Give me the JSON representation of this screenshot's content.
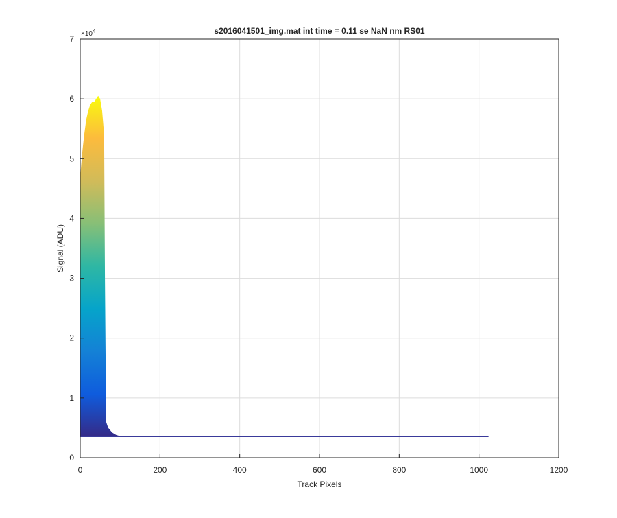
{
  "chart_data": {
    "type": "area",
    "title": "s2016041501_img.mat int time = 0.11 se  NaN nm RS01",
    "x_label": "Track Pixels",
    "y_label": "Signal (ADU)",
    "y_multiplier_base": "×10",
    "y_multiplier_power": "4",
    "xlim": [
      0,
      1200
    ],
    "xticks": [
      0,
      200,
      400,
      600,
      800,
      1000,
      1200
    ],
    "ylim": [
      0,
      70000
    ],
    "yticks": [
      {
        "value": 0,
        "label": "0"
      },
      {
        "value": 10000,
        "label": "1"
      },
      {
        "value": 20000,
        "label": "2"
      },
      {
        "value": 30000,
        "label": "3"
      },
      {
        "value": 40000,
        "label": "4"
      },
      {
        "value": 50000,
        "label": "5"
      },
      {
        "value": 60000,
        "label": "6"
      },
      {
        "value": 70000,
        "label": "7"
      }
    ],
    "grid": true,
    "fill_base": 3500,
    "colormap": [
      "#352a87",
      "#0f5cdd",
      "#1481d6",
      "#06a4ca",
      "#2eb7a4",
      "#87bf77",
      "#d1bb59",
      "#fcbb3d",
      "#f9fb0e"
    ],
    "series": [
      {
        "x": [
          0,
          5,
          10,
          15,
          20,
          25,
          30,
          35,
          40,
          45,
          50,
          55,
          60,
          62,
          65,
          70,
          80,
          90,
          100,
          150,
          300,
          600,
          1024
        ],
        "values": [
          47000,
          51000,
          54000,
          56500,
          58000,
          59000,
          59500,
          59500,
          60000,
          60500,
          60000,
          58000,
          54000,
          30000,
          6000,
          5000,
          4200,
          3800,
          3600,
          3500,
          3500,
          3500,
          3500
        ]
      }
    ]
  }
}
